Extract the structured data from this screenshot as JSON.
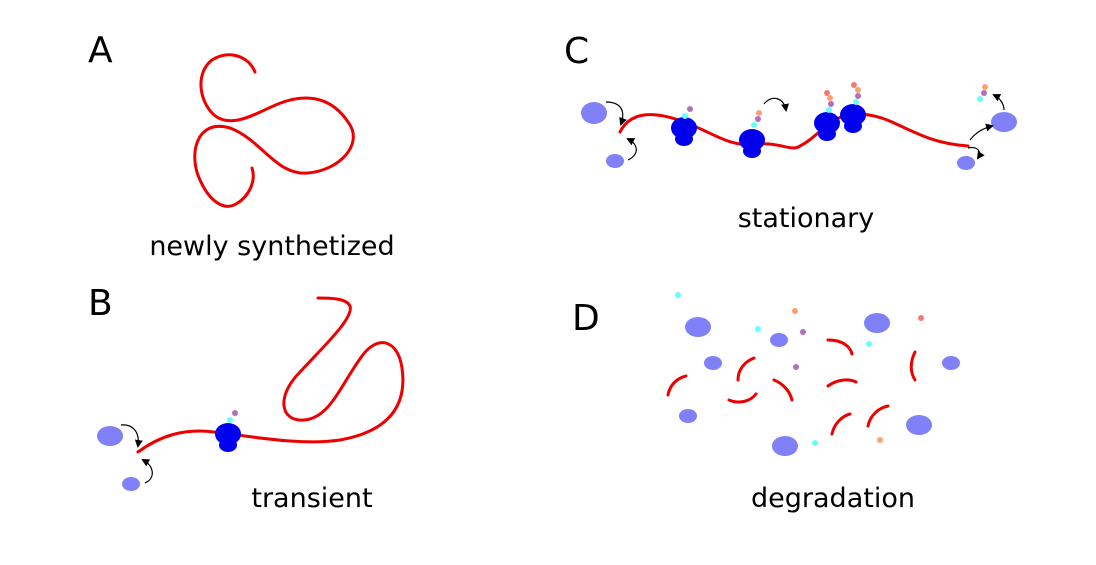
{
  "panels": {
    "A": {
      "letter": "A",
      "caption": "newly synthetized"
    },
    "B": {
      "letter": "B",
      "caption": "transient"
    },
    "C": {
      "letter": "C",
      "caption": "stationary"
    },
    "D": {
      "letter": "D",
      "caption": "degradation"
    }
  },
  "colors": {
    "mrna": "#ee0000",
    "ribosome": "#0000ee",
    "ribosome_subunit": "#8080f8",
    "peptide_cyan": "#66ffff",
    "peptide_purple": "#b070c0",
    "peptide_orange": "#ffa070",
    "peptide_salmon": "#f87878"
  }
}
